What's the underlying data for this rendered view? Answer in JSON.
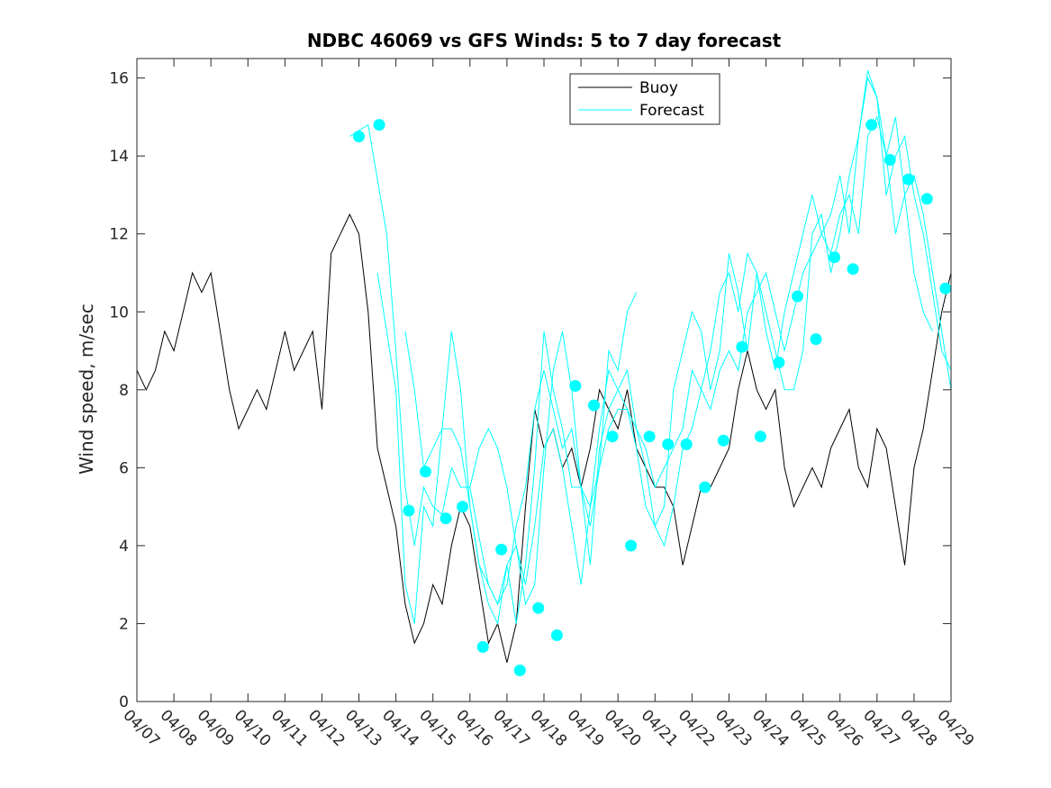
{
  "chart_data": {
    "type": "line",
    "title": "NDBC 46069 vs GFS Winds: 5 to 7 day forecast",
    "xlabel": "",
    "ylabel": "Wind speed, m/sec",
    "xlim": [
      0,
      22
    ],
    "ylim": [
      0,
      16.5
    ],
    "yticks": [
      0,
      2,
      4,
      6,
      8,
      10,
      12,
      14,
      16
    ],
    "xtick_labels": [
      "04/07",
      "04/08",
      "04/09",
      "04/10",
      "04/11",
      "04/12",
      "04/13",
      "04/14",
      "04/15",
      "04/16",
      "04/17",
      "04/18",
      "04/19",
      "04/20",
      "04/21",
      "04/22",
      "04/23",
      "04/24",
      "04/25",
      "04/26",
      "04/27",
      "04/28",
      "04/29"
    ],
    "legend": {
      "position": "top-right",
      "entries": [
        "Buoy",
        "Forecast"
      ]
    },
    "colors": {
      "buoy": "#000000",
      "forecast": "#00ffff",
      "axes": "#262626"
    },
    "series": [
      {
        "name": "Buoy",
        "x": [
          0.0,
          0.25,
          0.5,
          0.75,
          1.0,
          1.25,
          1.5,
          1.75,
          2.0,
          2.25,
          2.5,
          2.75,
          3.0,
          3.25,
          3.5,
          3.75,
          4.0,
          4.25,
          4.5,
          4.75,
          5.0,
          5.25,
          5.5,
          5.75,
          6.0,
          6.25,
          6.5,
          6.75,
          7.0,
          7.25,
          7.5,
          7.75,
          8.0,
          8.25,
          8.5,
          8.75,
          9.0,
          9.25,
          9.5,
          9.75,
          10.0,
          10.25,
          10.5,
          10.75,
          11.0,
          11.25,
          11.5,
          11.75,
          12.0,
          12.25,
          12.5,
          12.75,
          13.0,
          13.25,
          13.5,
          13.75,
          14.0,
          14.25,
          14.5,
          14.75,
          15.0,
          15.25,
          15.5,
          15.75,
          16.0,
          16.25,
          16.5,
          16.75,
          17.0,
          17.25,
          17.5,
          17.75,
          18.0,
          18.25,
          18.5,
          18.75,
          19.0,
          19.25,
          19.5,
          19.75,
          20.0,
          20.25,
          20.5,
          20.75,
          21.0,
          21.25,
          21.5,
          21.75,
          22.0
        ],
        "values": [
          8.5,
          8,
          8.5,
          9.5,
          9,
          10,
          11,
          10.5,
          11,
          9.5,
          8,
          7,
          7.5,
          8,
          7.5,
          8.5,
          9.5,
          8.5,
          9,
          9.5,
          7.5,
          11.5,
          12,
          12.5,
          12,
          10,
          6.5,
          5.5,
          4.5,
          2.5,
          1.5,
          2,
          3,
          2.5,
          4,
          5,
          4.5,
          3,
          1.5,
          2,
          1,
          2,
          5,
          7.5,
          6.5,
          7,
          6,
          6.5,
          5.5,
          6.5,
          8,
          7.5,
          7,
          8,
          6.5,
          6,
          5.5,
          5.5,
          5,
          3.5,
          4.5,
          5.5,
          5.5,
          6,
          6.5,
          8,
          9,
          8,
          7.5,
          8,
          6,
          5,
          5.5,
          6,
          5.5,
          6.5,
          7,
          7.5,
          6,
          5.5,
          7,
          6.5,
          5,
          3.5,
          6,
          7,
          8.5,
          10,
          11
        ]
      },
      {
        "name": "Forecast",
        "x": [
          5.75,
          6.25,
          6.75,
          7.0,
          7.25,
          7.5,
          7.75,
          8.0,
          8.25,
          8.5,
          8.75,
          9.0,
          9.25,
          9.5,
          9.75,
          10.0,
          10.25,
          10.5,
          10.75,
          11.0,
          11.25,
          11.5,
          11.75,
          12.0,
          12.25,
          12.5,
          12.75,
          13.0,
          13.25,
          13.5,
          13.75,
          14.0,
          14.25,
          14.5,
          14.75,
          15.0,
          15.25,
          15.5,
          15.75,
          16.0,
          16.25,
          16.5,
          16.75,
          17.0,
          17.25,
          17.5,
          17.75,
          18.0,
          18.25,
          18.5,
          18.75,
          19.0,
          19.25,
          19.5,
          19.75,
          20.0,
          20.25,
          20.5,
          20.75,
          21.0,
          21.25,
          21.5,
          21.75,
          22.0
        ],
        "values": [
          14.5,
          14.8,
          12,
          9,
          5.5,
          4,
          5.5,
          5,
          4.8,
          6,
          5.5,
          5.5,
          4.2,
          3,
          2.5,
          3,
          4.5,
          5.5,
          7.5,
          8.5,
          7.5,
          6.5,
          7,
          5.5,
          5,
          6,
          7,
          7.5,
          7.5,
          7,
          6.5,
          5.5,
          6,
          6.5,
          7,
          8.5,
          8,
          7.5,
          8.5,
          9,
          8.5,
          10,
          10.5,
          11,
          10,
          9,
          10,
          11,
          11.5,
          12,
          11.5,
          12.5,
          13,
          12,
          14.5,
          15,
          14,
          12,
          13,
          13.5,
          12.5,
          11,
          9.5,
          8
        ]
      },
      {
        "name": "Forecast",
        "x": [
          6.5,
          7.0,
          7.25,
          7.5,
          7.75,
          8.0,
          8.25,
          8.5,
          8.75,
          9.0,
          9.25,
          9.5,
          9.75,
          10.0,
          10.25,
          10.5,
          10.75,
          11.0,
          11.25,
          11.5,
          11.75,
          12.0,
          12.25,
          12.5,
          12.75,
          13.0,
          13.25,
          13.5,
          13.75,
          14.0,
          14.25,
          14.5,
          14.75,
          15.0,
          15.25,
          15.5,
          15.75,
          16.0,
          16.25,
          16.5,
          16.75,
          17.0,
          17.25,
          17.5,
          17.75,
          18.0,
          18.25,
          18.5,
          18.75,
          19.0,
          19.25,
          19.5,
          19.75,
          20.0,
          20.25,
          20.5,
          20.75,
          21.0,
          21.25,
          21.5,
          21.75,
          22.0
        ],
        "values": [
          11,
          8,
          3,
          2,
          5,
          4.5,
          7,
          9.5,
          8,
          5,
          3.5,
          3,
          2.5,
          3.5,
          2,
          3.5,
          6,
          9.5,
          8,
          7,
          5.5,
          5.5,
          3.5,
          6.5,
          7.5,
          8,
          8.5,
          7,
          6,
          4.5,
          5,
          8,
          9,
          10,
          9.5,
          8,
          9,
          11.5,
          10.5,
          9,
          11,
          9.5,
          8.5,
          10,
          11,
          12,
          13,
          12,
          12.5,
          13.5,
          12,
          14.5,
          16,
          15.5,
          13,
          14,
          14.5,
          13,
          12,
          10.5,
          9,
          8.5
        ]
      },
      {
        "name": "Forecast",
        "x": [
          7.25,
          7.5,
          7.75,
          8.0,
          8.25,
          8.5,
          8.75,
          9.0,
          9.25,
          9.5,
          9.75,
          10.0,
          10.25,
          10.5,
          10.75,
          11.0,
          11.25,
          11.5,
          11.75,
          12.0,
          12.25,
          12.5,
          12.75,
          13.0,
          13.25,
          13.5
        ],
        "values": [
          9.5,
          8,
          6,
          6.5,
          7,
          7,
          6.5,
          5,
          3.5,
          2.5,
          2,
          3.5,
          4,
          2.5,
          3,
          6,
          8.5,
          9.5,
          8,
          5.5,
          4.5,
          6,
          9,
          8.5,
          10,
          10.5
        ]
      },
      {
        "name": "Forecast",
        "x": [
          9.0,
          9.25,
          9.5,
          9.75,
          10.0,
          10.25,
          10.5,
          10.75,
          11.0,
          11.25,
          11.5,
          11.75,
          12.0,
          12.25,
          12.5,
          12.75,
          13.0,
          13.25,
          13.5,
          13.75,
          14.0,
          14.25,
          14.5,
          14.75,
          15.0,
          15.25,
          15.5,
          15.75,
          16.0,
          16.25,
          16.5,
          16.75,
          17.0,
          17.25,
          17.5,
          17.75,
          18.0,
          18.25,
          18.5,
          18.75,
          19.0,
          19.25,
          19.5,
          19.75,
          20.0,
          20.25,
          20.5,
          20.75,
          21.0,
          21.25,
          21.5
        ],
        "values": [
          5.5,
          6.5,
          7,
          6.5,
          5.5,
          4,
          3,
          4.5,
          6.5,
          7,
          6,
          4.5,
          3,
          5,
          7,
          8.5,
          8,
          7.5,
          6.5,
          5,
          4.5,
          4,
          5,
          6.5,
          7,
          8,
          9,
          10.5,
          11,
          10,
          11.5,
          11,
          10,
          9,
          8,
          8,
          9,
          12,
          12.5,
          11,
          12,
          13.5,
          14.5,
          16.2,
          15.5,
          14,
          15,
          13,
          11,
          10,
          9.5
        ]
      }
    ],
    "forecast_markers": {
      "x": [
        6.0,
        6.55,
        7.35,
        7.8,
        8.35,
        8.8,
        9.35,
        9.85,
        10.35,
        10.85,
        11.35,
        11.85,
        12.35,
        12.85,
        13.35,
        13.85,
        14.35,
        14.85,
        15.35,
        15.85,
        16.35,
        16.85,
        17.35,
        17.85,
        18.35,
        18.85,
        19.35,
        19.85,
        20.35,
        20.85,
        21.35,
        21.85
      ],
      "values": [
        14.5,
        14.8,
        4.9,
        5.9,
        4.7,
        5.0,
        1.4,
        3.9,
        0.8,
        2.4,
        1.7,
        8.1,
        7.6,
        6.8,
        4.0,
        6.8,
        6.6,
        6.6,
        5.5,
        6.7,
        9.1,
        6.8,
        8.7,
        10.4,
        9.3,
        11.4,
        11.1,
        14.8,
        13.9,
        13.4,
        12.9,
        10.6
      ]
    }
  }
}
